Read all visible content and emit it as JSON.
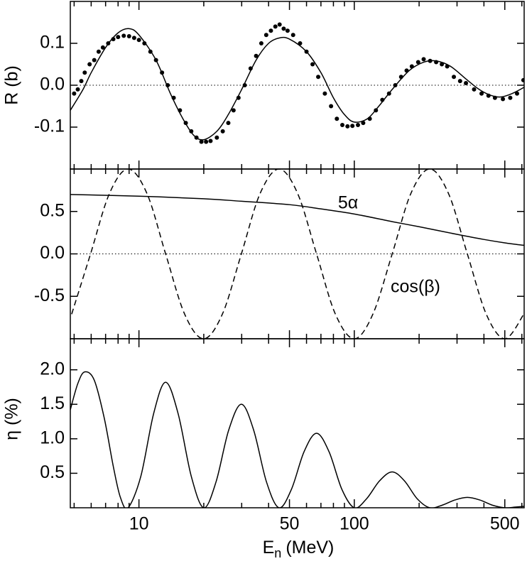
{
  "chart_data": [
    {
      "type": "line",
      "ylabel": "R (b)",
      "log_x": true,
      "xlim": [
        4.8,
        615
      ],
      "ylim": [
        -0.2,
        0.2
      ],
      "xticks": [
        10,
        50,
        100,
        500
      ],
      "xminor": [
        5,
        6,
        7,
        8,
        9,
        20,
        30,
        40,
        60,
        70,
        80,
        90,
        200,
        300,
        400,
        600
      ],
      "show_xtick_labels": false,
      "yticks": [
        -0.1,
        {
          "value": 0,
          "label": "0.0"
        },
        0.1
      ],
      "reference_line": 0,
      "series": [
        {
          "style": "markers",
          "color": "#000000",
          "x": [
            5,
            5.2,
            5.4,
            5.6,
            5.9,
            6.2,
            6.5,
            6.8,
            7.2,
            7.6,
            8,
            8.5,
            9,
            9.5,
            10,
            10.6,
            11.3,
            12,
            12.8,
            13.6,
            14.5,
            15.5,
            16.5,
            17.5,
            18.5,
            19.5,
            20.5,
            21.5,
            23,
            24.5,
            26,
            27.5,
            29,
            31,
            33,
            35,
            37,
            39,
            41,
            43,
            45,
            47,
            49,
            52,
            56,
            60,
            64,
            68,
            73,
            78,
            83,
            88,
            93,
            98,
            104,
            110,
            118,
            126,
            135,
            145,
            155,
            165,
            175,
            185,
            198,
            210,
            225,
            240,
            255,
            270,
            290,
            310,
            330,
            360,
            390,
            420,
            450,
            490,
            530,
            570,
            610
          ],
          "values": [
            -0.02,
            -0.01,
            0.01,
            0.03,
            0.05,
            0.06,
            0.08,
            0.09,
            0.1,
            0.11,
            0.115,
            0.118,
            0.117,
            0.113,
            0.108,
            0.1,
            0.08,
            0.06,
            0.03,
            0.0,
            -0.03,
            -0.06,
            -0.09,
            -0.11,
            -0.125,
            -0.135,
            -0.135,
            -0.133,
            -0.125,
            -0.11,
            -0.09,
            -0.06,
            -0.03,
            0.0,
            0.04,
            0.07,
            0.1,
            0.12,
            0.13,
            0.14,
            0.145,
            0.135,
            0.13,
            0.12,
            0.1,
            0.08,
            0.05,
            0.02,
            -0.02,
            -0.05,
            -0.08,
            -0.095,
            -0.098,
            -0.097,
            -0.095,
            -0.09,
            -0.08,
            -0.06,
            -0.035,
            -0.02,
            0.0,
            0.02,
            0.035,
            0.045,
            0.055,
            0.062,
            0.058,
            0.055,
            0.05,
            0.045,
            0.02,
            0.01,
            0.005,
            -0.01,
            -0.02,
            -0.025,
            -0.03,
            -0.033,
            -0.03,
            -0.02,
            0.012
          ]
        },
        {
          "style": "solid",
          "color": "#000000",
          "x": [
            4.8,
            5.5,
            6,
            7,
            8,
            9,
            10,
            12,
            14,
            16,
            18,
            20,
            23,
            26,
            30,
            35,
            40,
            45,
            50,
            60,
            70,
            80,
            90,
            100,
            115,
            130,
            150,
            180,
            210,
            240,
            280,
            330,
            380,
            430,
            480,
            540,
            615
          ],
          "values": [
            -0.06,
            -0.01,
            0.03,
            0.09,
            0.125,
            0.135,
            0.12,
            0.06,
            -0.02,
            -0.08,
            -0.12,
            -0.13,
            -0.11,
            -0.07,
            -0.01,
            0.06,
            0.1,
            0.113,
            0.11,
            0.08,
            0.03,
            -0.03,
            -0.07,
            -0.088,
            -0.08,
            -0.05,
            -0.01,
            0.035,
            0.055,
            0.058,
            0.045,
            0.015,
            -0.01,
            -0.024,
            -0.028,
            -0.02,
            -0.005
          ]
        }
      ]
    },
    {
      "type": "line",
      "log_x": true,
      "xlim": [
        4.8,
        615
      ],
      "ylim": [
        -1,
        1
      ],
      "xticks": [
        10,
        50,
        100,
        500
      ],
      "xminor": [
        5,
        6,
        7,
        8,
        9,
        20,
        30,
        40,
        60,
        70,
        80,
        90,
        200,
        300,
        400,
        600
      ],
      "show_xtick_labels": false,
      "yticks": [
        -0.5,
        {
          "value": 0,
          "label": "0.0"
        },
        0.5
      ],
      "reference_line": 0,
      "series": [
        {
          "name": "5α",
          "style": "solid",
          "color": "#000000",
          "x": [
            4.8,
            10,
            20,
            30,
            50,
            70,
            100,
            150,
            200,
            300,
            400,
            500,
            615
          ],
          "values": [
            0.7,
            0.68,
            0.65,
            0.62,
            0.58,
            0.53,
            0.47,
            0.38,
            0.32,
            0.23,
            0.17,
            0.13,
            0.1
          ]
        },
        {
          "name": "cos(β)",
          "style": "dashed",
          "color": "#000000",
          "x": [
            4.87,
            5.96,
            7.29,
            8.91,
            10.9,
            13.3,
            16.3,
            19.95,
            24.4,
            29.9,
            36.5,
            44.7,
            54.6,
            66.8,
            81.7,
            100,
            122,
            150,
            183,
            224,
            274,
            335,
            410,
            501,
            613
          ],
          "values": [
            -0.71,
            0,
            0.71,
            1,
            0.71,
            0,
            -0.71,
            -1,
            -0.71,
            0,
            0.71,
            1,
            0.71,
            0,
            -0.71,
            -1,
            -0.71,
            0,
            0.71,
            1,
            0.71,
            0,
            -0.71,
            -1,
            -0.71
          ]
        }
      ]
    },
    {
      "type": "line",
      "ylabel": "η (%)",
      "xlabel": "E",
      "xlabel_subscript": "n",
      "xlabel_unit": "(MeV)",
      "log_x": true,
      "xlim": [
        4.8,
        615
      ],
      "ylim": [
        0,
        2.45
      ],
      "xticks": [
        10,
        50,
        100,
        500
      ],
      "xminor": [
        5,
        6,
        7,
        8,
        9,
        20,
        30,
        40,
        60,
        70,
        80,
        90,
        200,
        300,
        400,
        600
      ],
      "show_xtick_labels": true,
      "yticks": [
        0.5,
        {
          "value": 1,
          "label": "1.0"
        },
        1.5,
        {
          "value": 2,
          "label": "2.0"
        }
      ],
      "series": [
        {
          "style": "solid",
          "color": "#000000",
          "x": [
            4.8,
            5.2,
            5.6,
            6.2,
            6.9,
            7.6,
            8.2,
            8.9,
            10.2,
            11.7,
            13.3,
            15.2,
            17.5,
            20,
            22.8,
            26.1,
            29.9,
            34.1,
            39.1,
            44.7,
            51.1,
            58.4,
            66.8,
            76.4,
            87.5,
            100,
            114,
            131,
            150,
            171,
            196,
            224,
            256,
            293,
            335,
            383,
            438,
            501,
            560,
            613
          ],
          "values": [
            1.42,
            1.8,
            1.97,
            1.85,
            1.3,
            0.6,
            0.15,
            0,
            0.455,
            1.365,
            1.82,
            1.365,
            0.455,
            0,
            0.375,
            1.125,
            1.5,
            1.125,
            0.375,
            0,
            0.27,
            0.81,
            1.08,
            0.81,
            0.27,
            0,
            0.13,
            0.39,
            0.52,
            0.39,
            0.13,
            0,
            0.0375,
            0.1125,
            0.15,
            0.1125,
            0.0375,
            0,
            0.01,
            0.02
          ]
        }
      ]
    }
  ]
}
